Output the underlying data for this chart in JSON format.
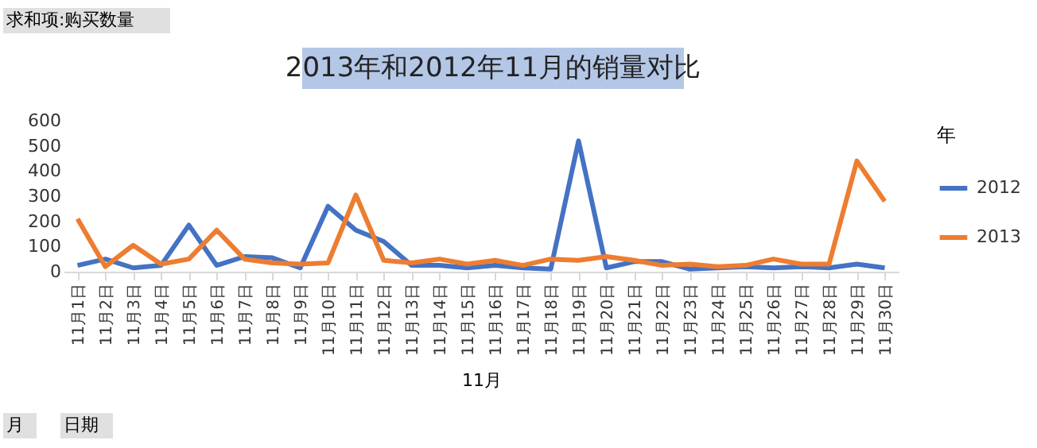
{
  "chart_data": {
    "type": "line",
    "title": "2013年和2012年11月的销量对比",
    "xlabel": "11月",
    "legend_title": "年",
    "annotations": [
      "求和项:购买数量",
      "月",
      "日期"
    ],
    "categories": [
      "11月1日",
      "11月2日",
      "11月3日",
      "11月4日",
      "11月5日",
      "11月6日",
      "11月7日",
      "11月8日",
      "11月9日",
      "11月10日",
      "11月11日",
      "11月12日",
      "11月13日",
      "11月14日",
      "11月15日",
      "11月16日",
      "11月17日",
      "11月18日",
      "11月19日",
      "11月20日",
      "11月21日",
      "11月22日",
      "11月23日",
      "11月24日",
      "11月25日",
      "11月26日",
      "11月27日",
      "11月28日",
      "11月29日",
      "11月30日"
    ],
    "series": [
      {
        "name": "2012",
        "color": "#4472c4",
        "values": [
          25,
          50,
          15,
          25,
          185,
          25,
          60,
          55,
          15,
          260,
          165,
          120,
          25,
          25,
          15,
          25,
          15,
          10,
          520,
          15,
          40,
          40,
          10,
          15,
          20,
          15,
          20,
          15,
          30,
          15
        ]
      },
      {
        "name": "2013",
        "color": "#ed7d31",
        "values": [
          210,
          20,
          105,
          30,
          50,
          165,
          50,
          35,
          30,
          35,
          305,
          45,
          35,
          50,
          30,
          45,
          25,
          50,
          45,
          60,
          45,
          25,
          30,
          20,
          25,
          50,
          30,
          30,
          440,
          280
        ]
      }
    ],
    "ylim": [
      0,
      600
    ],
    "yticks": [
      0,
      100,
      200,
      300,
      400,
      500,
      600
    ],
    "grid": false,
    "legend": "right",
    "marker": "none",
    "line_style": "solid"
  }
}
